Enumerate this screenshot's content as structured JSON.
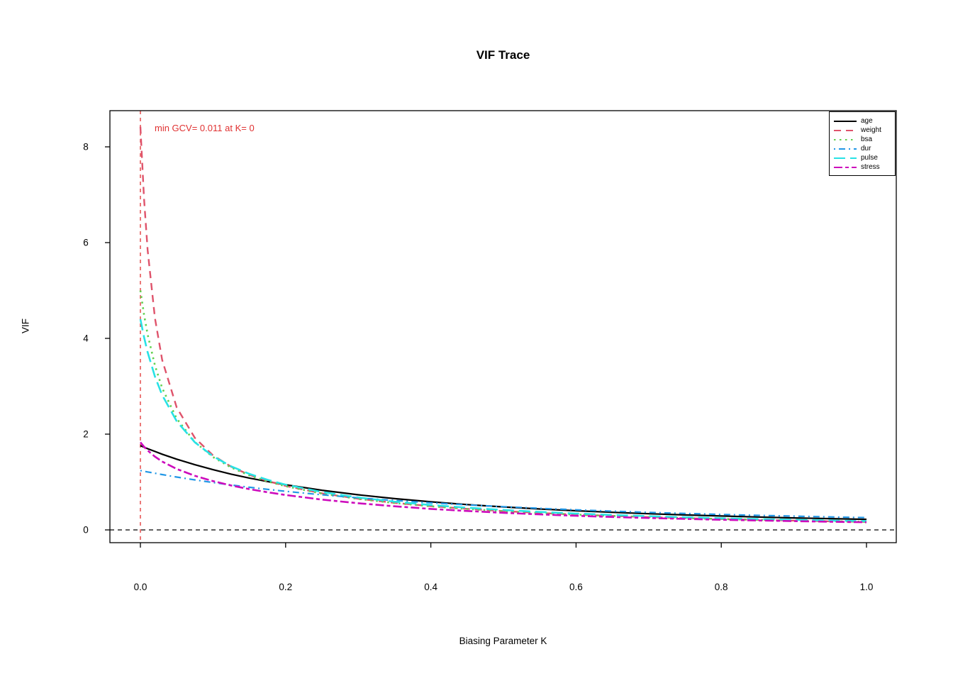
{
  "chart_data": {
    "type": "line",
    "title": "VIF Trace",
    "xlabel": "Biasing Parameter K",
    "ylabel": "VIF",
    "xlim": [
      -0.04,
      1.04
    ],
    "ylim": [
      -0.27,
      8.76
    ],
    "grid": false,
    "x_ticks": {
      "values": [
        0,
        0.2,
        0.4,
        0.6,
        0.8,
        1.0
      ],
      "labels": [
        "0.0",
        "0.2",
        "0.4",
        "0.6",
        "0.8",
        "1.0"
      ]
    },
    "y_ticks": {
      "values": [
        0,
        2,
        4,
        6,
        8
      ],
      "labels": [
        "0",
        "2",
        "4",
        "6",
        "8"
      ]
    },
    "annotation": {
      "text": "min GCV= 0.011 at K= 0",
      "color": "#e03131"
    },
    "ref_vline": {
      "x": 0,
      "color": "#e03131",
      "style": "dashed"
    },
    "ref_hline": {
      "y": 0,
      "color": "#000000",
      "style": "dashed"
    },
    "legend": {
      "position": "top-right",
      "entries": [
        "age",
        "weight",
        "bsa",
        "dur",
        "pulse",
        "stress"
      ]
    },
    "x": [
      0,
      0.005,
      0.01,
      0.02,
      0.03,
      0.05,
      0.075,
      0.1,
      0.125,
      0.15,
      0.175,
      0.2,
      0.25,
      0.3,
      0.35,
      0.4,
      0.45,
      0.5,
      0.55,
      0.6,
      0.65,
      0.7,
      0.75,
      0.8,
      0.85,
      0.9,
      0.95,
      1.0
    ],
    "series": [
      {
        "name": "age",
        "color": "#000000",
        "dash": "",
        "width": 2.2,
        "values": [
          1.76,
          1.728,
          1.697,
          1.638,
          1.581,
          1.477,
          1.361,
          1.258,
          1.165,
          1.083,
          1.01,
          0.943,
          0.828,
          0.734,
          0.654,
          0.587,
          0.529,
          0.48,
          0.437,
          0.4,
          0.367,
          0.338,
          0.313,
          0.29,
          0.269,
          0.251,
          0.235,
          0.22
        ]
      },
      {
        "name": "weight",
        "color": "#DF536B",
        "dash": "10,7",
        "width": 2.4,
        "values": [
          8.42,
          6.923,
          5.845,
          4.424,
          3.55,
          2.557,
          1.921,
          1.557,
          1.32,
          1.15,
          1.021,
          0.918,
          0.764,
          0.652,
          0.565,
          0.496,
          0.44,
          0.393,
          0.354,
          0.32,
          0.292,
          0.267,
          0.245,
          0.226,
          0.209,
          0.194,
          0.18,
          0.168
        ]
      },
      {
        "name": "bsa",
        "color": "#61D04F",
        "dash": "2.5,5.5",
        "width": 2.6,
        "values": [
          5.0,
          4.498,
          4.081,
          3.436,
          2.963,
          2.325,
          1.836,
          1.522,
          1.302,
          1.139,
          1.013,
          0.912,
          0.759,
          0.647,
          0.561,
          0.493,
          0.437,
          0.391,
          0.353,
          0.32,
          0.292,
          0.268,
          0.246,
          0.228,
          0.21,
          0.196,
          0.182,
          0.17
        ]
      },
      {
        "name": "dur",
        "color": "#2297E6",
        "dash": "2,5,9,5",
        "width": 2.2,
        "values": [
          1.24,
          1.225,
          1.211,
          1.183,
          1.155,
          1.104,
          1.044,
          0.989,
          0.938,
          0.891,
          0.847,
          0.806,
          0.734,
          0.67,
          0.615,
          0.566,
          0.523,
          0.484,
          0.45,
          0.419,
          0.391,
          0.366,
          0.343,
          0.323,
          0.304,
          0.287,
          0.271,
          0.256
        ]
      },
      {
        "name": "pulse",
        "color": "#28E2E5",
        "dash": "16,7",
        "width": 2.6,
        "values": [
          4.4,
          4.028,
          3.711,
          3.203,
          2.816,
          2.27,
          1.83,
          1.538,
          1.328,
          1.17,
          1.046,
          0.945,
          0.791,
          0.677,
          0.59,
          0.52,
          0.463,
          0.416,
          0.375,
          0.342,
          0.312,
          0.286,
          0.264,
          0.243,
          0.227,
          0.21,
          0.196,
          0.184
        ]
      },
      {
        "name": "stress",
        "color": "#CD0BBC",
        "dash": "12,4,5,4",
        "width": 2.6,
        "values": [
          1.83,
          1.738,
          1.659,
          1.53,
          1.428,
          1.272,
          1.13,
          1.019,
          0.928,
          0.852,
          0.786,
          0.729,
          0.633,
          0.557,
          0.493,
          0.439,
          0.395,
          0.357,
          0.324,
          0.295,
          0.27,
          0.249,
          0.229,
          0.212,
          0.197,
          0.183,
          0.171,
          0.16
        ]
      }
    ]
  }
}
